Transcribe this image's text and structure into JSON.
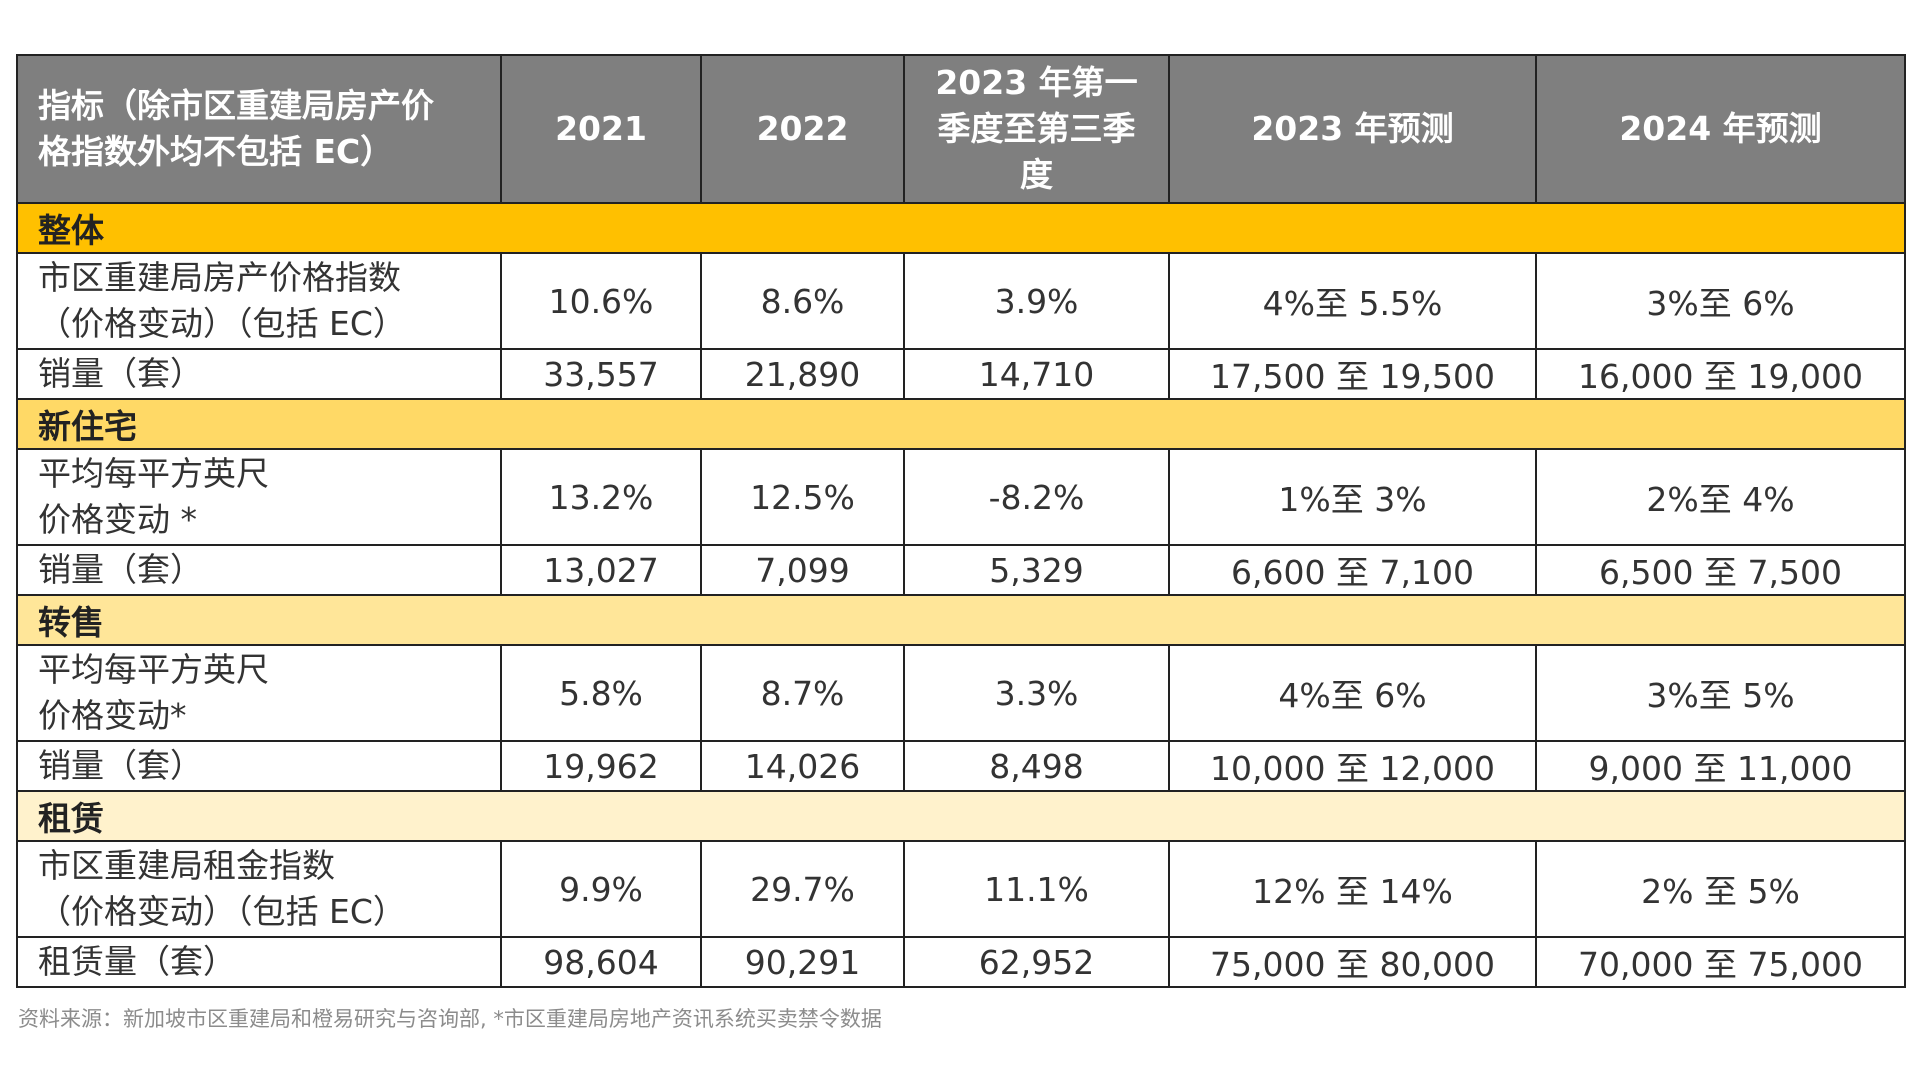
{
  "header": {
    "indicator": "指标（除市区重建局房产价格指数外均不包括 EC）",
    "indicator_line1": "指标（除市区重建局房产价",
    "indicator_line2": "格指数外均不包括 EC）",
    "y2021": "2021",
    "y2022": "2022",
    "q2023_line1": "2023 年第一",
    "q2023_line2": "季度至第三季",
    "q2023_line3": "度",
    "f2023": "2023 年预测",
    "f2024": "2024 年预测"
  },
  "sections": [
    {
      "title": "整体",
      "color": "#ffc000",
      "rows": [
        {
          "label_line1": "市区重建局房产价格指数",
          "label_line2": "（价格变动）（包括 EC）",
          "values": [
            "10.6%",
            "8.6%",
            "3.9%",
            "4%至 5.5%",
            "3%至 6%"
          ]
        },
        {
          "label_line1": "销量（套）",
          "label_line2": "",
          "values": [
            "33,557",
            "21,890",
            "14,710",
            "17,500 至 19,500",
            "16,000 至 19,000"
          ]
        }
      ]
    },
    {
      "title": "新住宅",
      "color": "#ffd966",
      "rows": [
        {
          "label_line1": "平均每平方英尺",
          "label_line2": "价格变动 *",
          "values": [
            "13.2%",
            "12.5%",
            "-8.2%",
            "1%至 3%",
            "2%至 4%"
          ]
        },
        {
          "label_line1": "销量（套）",
          "label_line2": "",
          "values": [
            "13,027",
            "7,099",
            "5,329",
            "6,600 至 7,100",
            "6,500 至 7,500"
          ]
        }
      ]
    },
    {
      "title": "转售",
      "color": "#ffe699",
      "rows": [
        {
          "label_line1": "平均每平方英尺",
          "label_line2": "价格变动*",
          "values": [
            "5.8%",
            "8.7%",
            "3.3%",
            "4%至 6%",
            "3%至 5%"
          ]
        },
        {
          "label_line1": "销量（套）",
          "label_line2": "",
          "values": [
            "19,962",
            "14,026",
            "8,498",
            "10,000 至 12,000",
            "9,000 至 11,000"
          ]
        }
      ]
    },
    {
      "title": "租赁",
      "color": "#fff2cc",
      "rows": [
        {
          "label_line1": "市区重建局租金指数",
          "label_line2": "（价格变动）（包括 EC）",
          "values": [
            "9.9%",
            "29.7%",
            "11.1%",
            "12% 至 14%",
            "2% 至 5%"
          ]
        },
        {
          "label_line1": "租赁量（套）",
          "label_line2": "",
          "values": [
            "98,604",
            "90,291",
            "62,952",
            "75,000 至 80,000",
            "70,000 至 75,000"
          ]
        }
      ]
    }
  ],
  "source": "资料来源：新加坡市区重建局和橙易研究与咨询部, *市区重建局房地产资讯系统买卖禁令数据"
}
